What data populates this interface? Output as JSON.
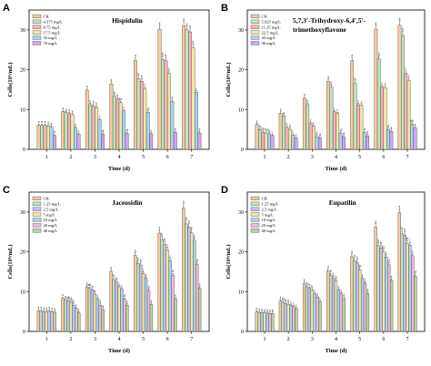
{
  "chart_data": [
    {
      "type": "bar",
      "panel": "A",
      "title": "Hispidulin",
      "xlabel": "Time (d)",
      "ylabel": "Cells(10⁶/mL)",
      "ylim": [
        0,
        35
      ],
      "yticks": [
        0,
        10,
        20,
        30
      ],
      "categories": [
        "1",
        "2",
        "3",
        "4",
        "5",
        "6",
        "7"
      ],
      "legend_position": "top-left",
      "series": [
        {
          "name": "CK",
          "color": "#f5c9a0",
          "values": [
            6,
            9.5,
            14.8,
            16.4,
            22.3,
            30.2,
            31
          ],
          "labels": [
            "a",
            "a",
            "a",
            "a",
            "a",
            "a",
            "a"
          ]
        },
        {
          "name": "4.375 mg/L",
          "color": "#bfe3bf",
          "values": [
            6,
            9.2,
            11.2,
            13.3,
            17.7,
            22.6,
            30
          ],
          "labels": [
            "a",
            "a",
            "b",
            "b",
            "b",
            "b",
            "a"
          ]
        },
        {
          "name": "8.75 mg/L",
          "color": "#f3b4b4",
          "values": [
            6,
            9,
            10.9,
            12.6,
            17.1,
            22.3,
            29.5
          ],
          "labels": [
            "a",
            "a",
            "b",
            "b",
            "b",
            "b",
            "a"
          ]
        },
        {
          "name": "17.5 mg/L",
          "color": "#f2e6a8",
          "values": [
            5.9,
            8.7,
            10.5,
            11.7,
            15.2,
            19.1,
            25.5
          ],
          "labels": [
            "a",
            "a",
            "b",
            "bc",
            "c",
            "c",
            "b"
          ]
        },
        {
          "name": "35 mg/L",
          "color": "#a8d4f0",
          "values": [
            5.6,
            5.3,
            7.5,
            9.7,
            9.3,
            12,
            14.3
          ],
          "labels": [
            "a",
            "b",
            "c",
            "c",
            "d",
            "d",
            "c"
          ]
        },
        {
          "name": "70 mg/L",
          "color": "#d4a6e8",
          "values": [
            3.5,
            3.8,
            3.8,
            4,
            3.9,
            4.2,
            4.1
          ],
          "labels": [
            "b",
            "c",
            "d",
            "d",
            "e",
            "e",
            "d"
          ]
        }
      ]
    },
    {
      "type": "bar",
      "panel": "B",
      "title": "5,7,3'-Trihydroxy-6,4',5'-trimethoxyflavone",
      "title_lines": [
        "5,7,3'-Trihydroxy-6,4',5'-",
        "trimethoxyflavone"
      ],
      "xlabel": "Time (d)",
      "ylabel": "Cells(10⁶/mL)",
      "ylim": [
        0,
        35
      ],
      "yticks": [
        0,
        10,
        20,
        30
      ],
      "categories": [
        "1",
        "2",
        "3",
        "4",
        "5",
        "6",
        "7"
      ],
      "legend_position": "top-left",
      "series": [
        {
          "name": "CK",
          "color": "#f5c9a0",
          "values": [
            6.2,
            9.1,
            12.8,
            17.1,
            22.3,
            30.2,
            31.2
          ],
          "labels": [
            "a",
            "a",
            "a",
            "a",
            "a",
            "a",
            "a"
          ]
        },
        {
          "name": "5.625 mg/L",
          "color": "#bfe3bf",
          "values": [
            4.9,
            8.4,
            11.2,
            15.6,
            16.6,
            22.7,
            28.6
          ],
          "labels": [
            "b",
            "a",
            "b",
            "b",
            "b",
            "b",
            "b"
          ]
        },
        {
          "name": "11.25 mg/L",
          "color": "#f3b4b4",
          "values": [
            4.3,
            5.5,
            6.6,
            9.4,
            11.2,
            15.6,
            19.1
          ],
          "labels": [
            "bc",
            "b",
            "c",
            "c",
            "c",
            "c",
            "c"
          ]
        },
        {
          "name": "22.5 mg/L",
          "color": "#f2e6a8",
          "values": [
            4.1,
            5,
            5.8,
            9,
            11.1,
            15.5,
            17.3
          ],
          "labels": [
            "bc",
            "b",
            "c",
            "c",
            "c",
            "c",
            "c"
          ]
        },
        {
          "name": "45 mg/L",
          "color": "#a8d4f0",
          "values": [
            3.9,
            3.6,
            3.2,
            4,
            4.2,
            5,
            6.3
          ],
          "labels": [
            "bc",
            "c",
            "d",
            "d",
            "d",
            "d",
            "de"
          ]
        },
        {
          "name": "90 mg/L",
          "color": "#d4a6e8",
          "values": [
            3.5,
            2.8,
            2.9,
            3.1,
            3.4,
            4.5,
            5.4
          ],
          "labels": [
            "c",
            "c",
            "d",
            "d",
            "d",
            "d",
            "e"
          ]
        }
      ]
    },
    {
      "type": "bar",
      "panel": "C",
      "title": "Jaceosidin",
      "xlabel": "Time (d)",
      "ylabel": "Cells(10⁶/mL)",
      "ylim": [
        0,
        35
      ],
      "yticks": [
        0,
        10,
        20,
        30
      ],
      "categories": [
        "1",
        "2",
        "3",
        "4",
        "5",
        "6",
        "7"
      ],
      "legend_position": "top-left",
      "series": [
        {
          "name": "CK",
          "color": "#f5c9a0",
          "values": [
            5.2,
            8.3,
            11.2,
            15,
            19.1,
            24.7,
            31
          ],
          "labels": [
            "a",
            "a",
            "a",
            "a",
            "a",
            "a",
            "a"
          ]
        },
        {
          "name": "1.25 mg/L",
          "color": "#bfe3bf",
          "values": [
            5.1,
            7.9,
            10.8,
            13,
            17.1,
            23.1,
            27
          ],
          "labels": [
            "a",
            "a",
            "ab",
            "b",
            "b",
            "b",
            "b"
          ]
        },
        {
          "name": "2.5 mg/L",
          "color": "#c7c0ee",
          "values": [
            5,
            7.7,
            10.4,
            12.4,
            16.7,
            21.8,
            26.2
          ],
          "labels": [
            "a",
            "ab",
            "b",
            "b",
            "b",
            "b",
            "b"
          ]
        },
        {
          "name": "5 mg/L",
          "color": "#f2e6a8",
          "values": [
            5,
            7.3,
            9.3,
            11.2,
            14.5,
            20.5,
            24.8
          ],
          "labels": [
            "a",
            "ab",
            "b",
            "c",
            "c",
            "c",
            "c"
          ]
        },
        {
          "name": "10 mg/L",
          "color": "#a8d4f0",
          "values": [
            5.1,
            6.6,
            8.2,
            10.6,
            13.3,
            17.8,
            22.9
          ],
          "labels": [
            "a",
            "bc",
            "c",
            "c",
            "c",
            "c",
            "c"
          ]
        },
        {
          "name": "20 mg/L",
          "color": "#f3b8d8",
          "values": [
            4.9,
            5.8,
            6.6,
            8.1,
            10.3,
            14.1,
            16.8
          ],
          "labels": [
            "a",
            "c",
            "d",
            "d",
            "d",
            "d",
            "d"
          ]
        },
        {
          "name": "40 mg/L",
          "color": "#b8d4a0",
          "values": [
            4.8,
            4.6,
            5.4,
            6.6,
            6.8,
            8.2,
            10.9
          ],
          "labels": [
            "a",
            "c",
            "d",
            "e",
            "e",
            "e",
            "e"
          ]
        }
      ]
    },
    {
      "type": "bar",
      "panel": "D",
      "title": "Eupatilin",
      "xlabel": "Time (d)",
      "ylabel": "Cells(10⁶/mL)",
      "ylim": [
        0,
        35
      ],
      "yticks": [
        0,
        10,
        20,
        30
      ],
      "categories": [
        "1",
        "2",
        "3",
        "4",
        "5",
        "6",
        "7"
      ],
      "legend_position": "top-left",
      "series": [
        {
          "name": "CK",
          "color": "#f5c9a0",
          "values": [
            4.9,
            7.6,
            12,
            15.2,
            18.8,
            26.2,
            29.8
          ],
          "labels": [
            "a",
            "a",
            "a",
            "a",
            "a",
            "a",
            "a"
          ]
        },
        {
          "name": "1.25 mg/L",
          "color": "#bfe3bf",
          "values": [
            4.7,
            7.3,
            11.2,
            14.1,
            17.8,
            21.6,
            24.5
          ],
          "labels": [
            "a",
            "ab",
            "b",
            "b",
            "b",
            "b",
            "b"
          ]
        },
        {
          "name": "2.5 mg/L",
          "color": "#c7c0ee",
          "values": [
            4.7,
            7,
            10.8,
            13.4,
            17.3,
            21,
            24.2
          ],
          "labels": [
            "a",
            "b",
            "b",
            "b",
            "b",
            "b",
            "b"
          ]
        },
        {
          "name": "5 mg/L",
          "color": "#f2e6a8",
          "values": [
            4.6,
            6.8,
            10.4,
            12.7,
            15.5,
            20,
            22.1
          ],
          "labels": [
            "a",
            "b",
            "b",
            "b",
            "bc",
            "bc",
            "bc"
          ]
        },
        {
          "name": "10 mg/L",
          "color": "#a8d4f0",
          "values": [
            4.6,
            6.5,
            9.4,
            10.4,
            13.3,
            18.7,
            21.6
          ],
          "labels": [
            "a",
            "c",
            "c",
            "c",
            "c",
            "c",
            "c"
          ]
        },
        {
          "name": "20 mg/L",
          "color": "#f3b8d8",
          "values": [
            4.5,
            6.2,
            8.6,
            9.6,
            12.1,
            16.7,
            19
          ],
          "labels": [
            "a",
            "c",
            "c",
            "c",
            "c",
            "d",
            "c"
          ]
        },
        {
          "name": "40 mg/L",
          "color": "#b8d4a0",
          "values": [
            4.5,
            5.7,
            7.5,
            8.2,
            9.5,
            12.8,
            13.9
          ],
          "labels": [
            "a",
            "c",
            "c",
            "d",
            "d",
            "e",
            "d"
          ]
        }
      ]
    }
  ]
}
